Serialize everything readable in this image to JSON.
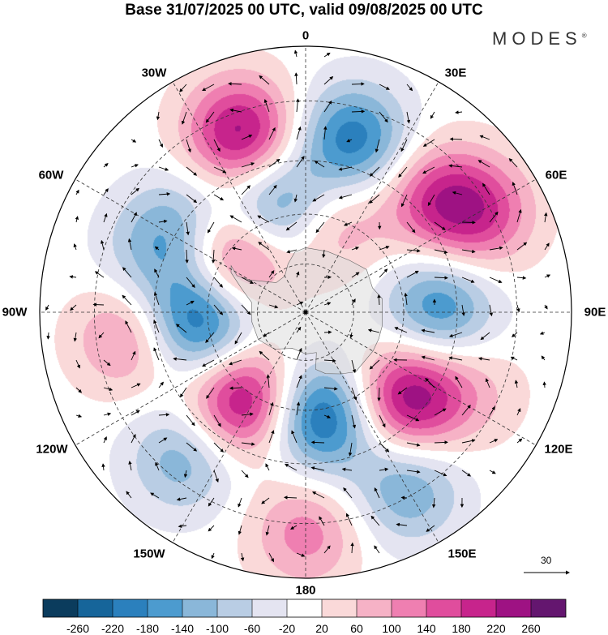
{
  "title": "Base 31/07/2025 00 UTC, valid 09/08/2025 00 UTC",
  "brand": "MODES",
  "brand_mark": "®",
  "longitude_labels": {
    "lon_0": "0",
    "lon_30e": "30E",
    "lon_60e": "60E",
    "lon_90e": "90E",
    "lon_120e": "120E",
    "lon_150e": "150E",
    "lon_180": "180",
    "lon_150w": "150W",
    "lon_120w": "120W",
    "lon_90w": "90W",
    "lon_60w": "60W",
    "lon_30w": "30W"
  },
  "reference_vector": "30",
  "colorbar": {
    "ticks": [
      "-260",
      "-220",
      "-180",
      "-140",
      "-100",
      "-60",
      "-20",
      "20",
      "60",
      "100",
      "140",
      "180",
      "220",
      "260"
    ],
    "colors": [
      "#0b3c5d",
      "#16659a",
      "#2b80bd",
      "#4c9bcf",
      "#8ab7d9",
      "#b9cde4",
      "#e4e4f1",
      "#ffffff",
      "#fad9d9",
      "#f6b2c6",
      "#ef7fb1",
      "#e04d9d",
      "#c7248c",
      "#9e1283",
      "#64166f"
    ]
  },
  "anomaly_centers": [
    {
      "lon": -20,
      "lat": -35,
      "value": 240
    },
    {
      "lon": 15,
      "lat": -38,
      "value": -210
    },
    {
      "lon": -55,
      "lat": -45,
      "value": -110
    },
    {
      "lon": -15,
      "lat": -58,
      "value": -230
    },
    {
      "lon": 12,
      "lat": -62,
      "value": 130
    },
    {
      "lon": 48,
      "lat": -40,
      "value": 140
    },
    {
      "lon": 60,
      "lat": -33,
      "value": 170
    },
    {
      "lon": -50,
      "lat": -62,
      "value": 220
    },
    {
      "lon": -70,
      "lat": -42,
      "value": -80
    },
    {
      "lon": 88,
      "lat": -50,
      "value": -180
    },
    {
      "lon": -95,
      "lat": -57,
      "value": -240
    },
    {
      "lon": -98,
      "lat": -38,
      "value": 130
    },
    {
      "lon": -145,
      "lat": -57,
      "value": 255
    },
    {
      "lon": 172,
      "lat": -58,
      "value": -250
    },
    {
      "lon": 130,
      "lat": -50,
      "value": 250
    },
    {
      "lon": -140,
      "lat": -35,
      "value": -130
    },
    {
      "lon": 150,
      "lat": -32,
      "value": -140
    },
    {
      "lon": 180,
      "lat": -28,
      "value": 120
    },
    {
      "lon": 115,
      "lat": -37,
      "value": 60
    }
  ]
}
